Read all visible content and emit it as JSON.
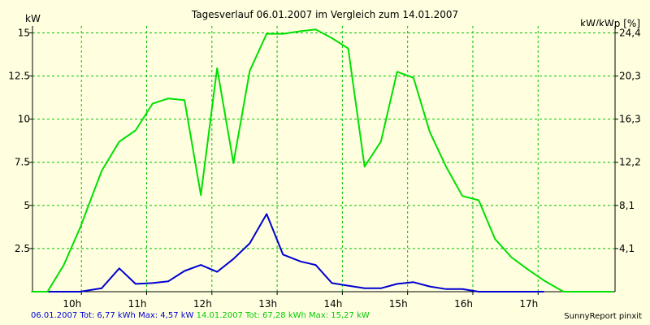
{
  "chart_data": {
    "type": "line",
    "title": "Tagesverlauf 06.01.2007 im Vergleich zum 14.01.2007",
    "ylabel_left": "kW",
    "ylabel_right": "kW/kWp [%]",
    "xlabel": "",
    "x_ticks": [
      {
        "label": "10h",
        "value": 10
      },
      {
        "label": "11h",
        "value": 11
      },
      {
        "label": "12h",
        "value": 12
      },
      {
        "label": "13h",
        "value": 13
      },
      {
        "label": "14h",
        "value": 14
      },
      {
        "label": "15h",
        "value": 15
      },
      {
        "label": "16h",
        "value": 16
      },
      {
        "label": "17h",
        "value": 17
      }
    ],
    "xlim": [
      9.25,
      18.18
    ],
    "y_left_ticks": [
      "15",
      "12.5",
      "10",
      "7.5",
      "5",
      "2.5"
    ],
    "y_left_values": [
      15,
      12.5,
      10,
      7.5,
      5,
      2.5
    ],
    "ylim": [
      0,
      15.4
    ],
    "y_right_ticks": [
      "24,4",
      "20,3",
      "16,3",
      "12,2",
      "8,1",
      "4,1"
    ],
    "grid": true,
    "legend": [
      "06.01.2007 Tot: 6,77 kWh Max: 4,57 kW",
      "14.01.2007 Tot: 67,28 kWh Max: 15,27 kW"
    ],
    "series": [
      {
        "name": "06.01.2007",
        "color": "#0000d0",
        "x": [
          9.48,
          9.73,
          9.98,
          10.31,
          10.58,
          10.83,
          11.09,
          11.33,
          11.58,
          11.83,
          12.08,
          12.33,
          12.58,
          12.84,
          13.09,
          13.36,
          13.59,
          13.84,
          14.09,
          14.34,
          14.59,
          14.84,
          15.09,
          15.34,
          15.59,
          15.84,
          16.09,
          16.34,
          16.59,
          16.84,
          17.09
        ],
        "y": [
          0,
          0,
          0,
          0.2,
          1.35,
          0.45,
          0.5,
          0.6,
          1.2,
          1.55,
          1.15,
          1.9,
          2.8,
          4.5,
          2.15,
          1.75,
          1.55,
          0.5,
          0.35,
          0.2,
          0.2,
          0.45,
          0.55,
          0.3,
          0.15,
          0.15,
          0,
          0,
          0,
          0,
          0
        ]
      },
      {
        "name": "14.01.2007",
        "color": "#00e000",
        "x": [
          9.23,
          9.48,
          9.73,
          9.98,
          10.31,
          10.58,
          10.83,
          11.09,
          11.33,
          11.58,
          11.83,
          12.08,
          12.33,
          12.58,
          12.84,
          13.09,
          13.36,
          13.59,
          13.84,
          14.09,
          14.34,
          14.59,
          14.84,
          15.09,
          15.34,
          15.59,
          15.84,
          16.09,
          16.34,
          16.59,
          16.84,
          17.09,
          17.39,
          17.66,
          18.14
        ],
        "y": [
          0,
          0,
          1.55,
          3.7,
          7.0,
          8.7,
          9.35,
          10.9,
          11.2,
          11.1,
          5.6,
          12.95,
          7.45,
          12.8,
          14.95,
          14.95,
          15.1,
          15.2,
          14.7,
          14.1,
          7.25,
          8.7,
          12.75,
          12.4,
          9.25,
          7.25,
          5.55,
          5.3,
          3.05,
          2.0,
          1.3,
          0.65,
          0.0,
          0.0,
          0.0
        ]
      }
    ]
  },
  "footer": {
    "credit": "SunnyReport pinxit"
  }
}
